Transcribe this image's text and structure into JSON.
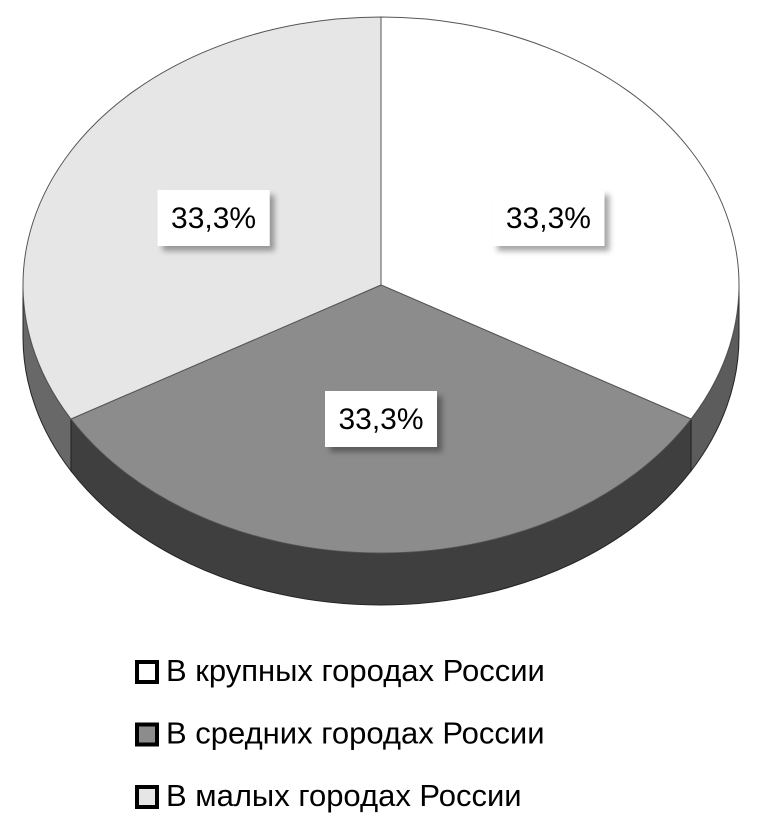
{
  "chart_data": {
    "type": "pie",
    "categories": [
      "В крупных городах России",
      "В средних городах России",
      "В малых городах России"
    ],
    "series": [
      {
        "values": [
          33.3,
          33.3,
          33.3
        ],
        "value_labels": [
          "33,3%",
          "33,3%",
          "33,3%"
        ],
        "colors": [
          "#ffffff",
          "#8c8c8c",
          "#e6e6e6"
        ]
      }
    ]
  }
}
